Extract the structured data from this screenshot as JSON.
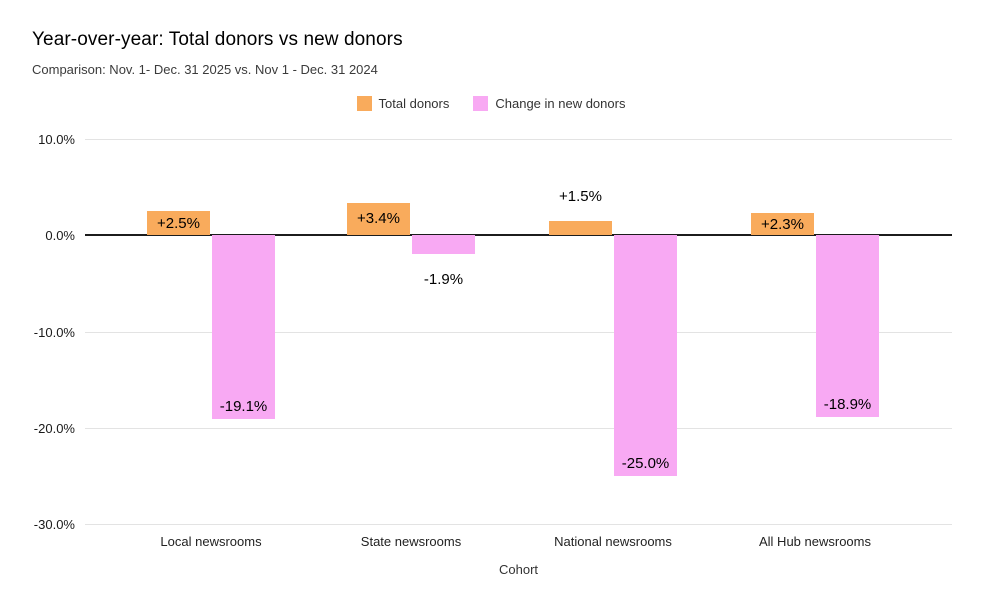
{
  "chart_data": {
    "type": "bar",
    "title": "Year-over-year: Total donors vs new donors",
    "subtitle": "Comparison: Nov. 1- Dec. 31 2025 vs. Nov 1 - Dec. 31 2024",
    "xlabel": "Cohort",
    "ylabel": "",
    "categories": [
      "Local newsrooms",
      "State newsrooms",
      "National newsrooms",
      "All Hub newsrooms"
    ],
    "series": [
      {
        "name": "Total donors",
        "color": "#F9AB5C",
        "values": [
          2.5,
          3.4,
          1.5,
          2.3
        ],
        "labels": [
          "+2.5%",
          "+3.4%",
          "+1.5%",
          "+2.3%"
        ]
      },
      {
        "name": "Change in new donors",
        "color": "#F8A9F3",
        "values": [
          -19.1,
          -1.9,
          -25.0,
          -18.9
        ],
        "labels": [
          "-19.1%",
          "-1.9%",
          "-25.0%",
          "-18.9%"
        ]
      }
    ],
    "ylim": [
      -30,
      10
    ],
    "yticks": [
      {
        "value": 10,
        "label": "10.0%"
      },
      {
        "value": 0,
        "label": "0.0%"
      },
      {
        "value": -10,
        "label": "-10.0%"
      },
      {
        "value": -20,
        "label": "-20.0%"
      },
      {
        "value": -30,
        "label": "-30.0%"
      }
    ],
    "grid": true,
    "legend_position": "top",
    "colors": {
      "background": "#ffffff",
      "gridline": "#e3e3e3",
      "zero_line": "#1c1c1c",
      "text": "#000000"
    }
  }
}
